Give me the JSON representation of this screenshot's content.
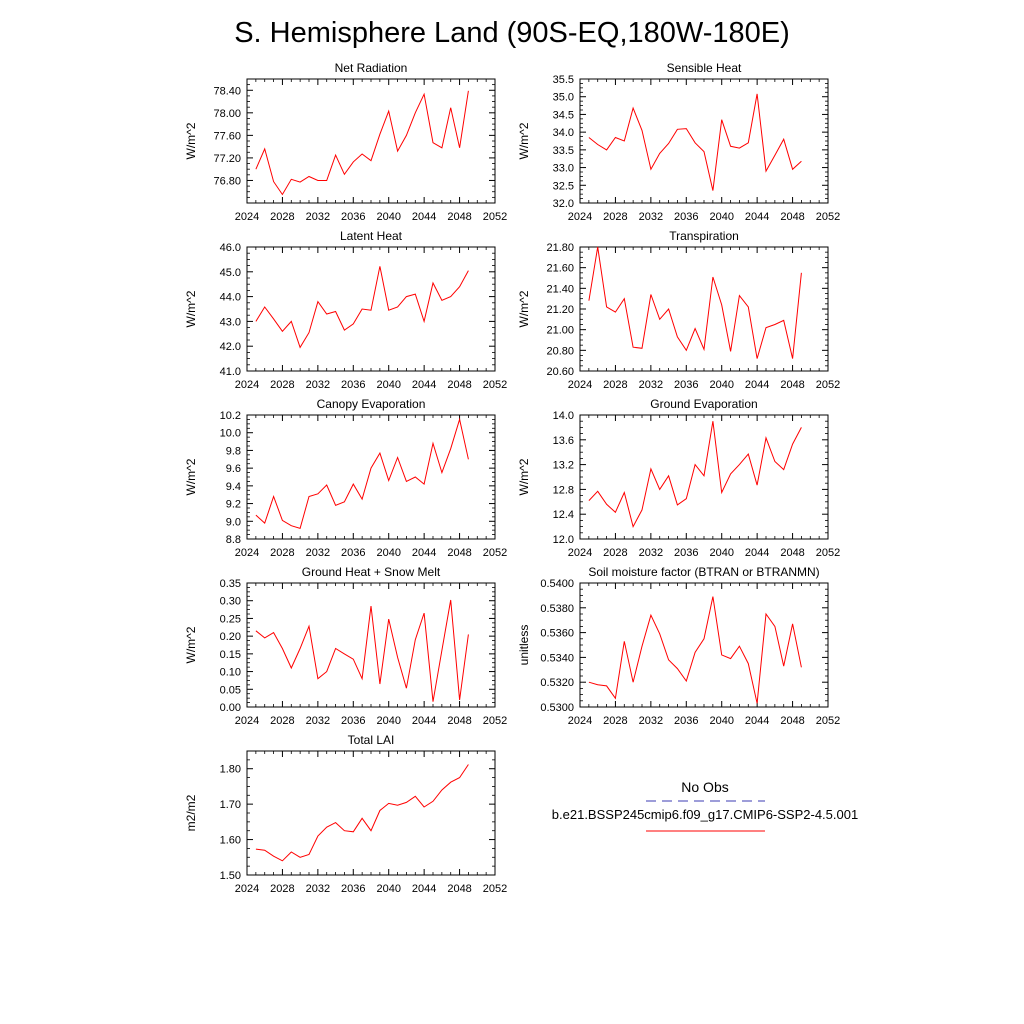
{
  "title": "S. Hemisphere Land (90S-EQ,180W-180E)",
  "legend": {
    "obs_label": "No Obs",
    "obs_color": "#3b3bb3",
    "case_label": "b.e21.BSSP245cmip6.f09_g17.CMIP6-SSP2-4.5.001",
    "case_color": "#ff0000"
  },
  "chart_data": [
    {
      "type": "line",
      "title": "Net Radiation",
      "ylabel": "W/m^2",
      "xlim": [
        2024,
        2052
      ],
      "xticks": [
        "2024",
        "2028",
        "2032",
        "2036",
        "2040",
        "2044",
        "2048",
        "2052"
      ],
      "ylim": [
        76.4,
        78.6
      ],
      "yticks": [
        "76.80",
        "77.20",
        "77.60",
        "78.00",
        "78.40"
      ],
      "x": [
        2025,
        2026,
        2027,
        2028,
        2029,
        2030,
        2031,
        2032,
        2033,
        2034,
        2035,
        2036,
        2037,
        2038,
        2039,
        2040,
        2041,
        2042,
        2043,
        2044,
        2045,
        2046,
        2047,
        2048,
        2049
      ],
      "values": [
        77.0,
        77.36,
        76.78,
        76.55,
        76.82,
        76.77,
        76.87,
        76.8,
        76.8,
        77.25,
        76.91,
        77.13,
        77.27,
        77.15,
        77.62,
        78.03,
        77.32,
        77.6,
        78.0,
        78.33,
        77.47,
        77.38,
        78.09,
        77.38,
        78.39
      ]
    },
    {
      "type": "line",
      "title": "Sensible Heat",
      "ylabel": "W/m^2",
      "xlim": [
        2024,
        2052
      ],
      "xticks": [
        "2024",
        "2028",
        "2032",
        "2036",
        "2040",
        "2044",
        "2048",
        "2052"
      ],
      "ylim": [
        32.0,
        35.5
      ],
      "yticks": [
        "32.0",
        "32.5",
        "33.0",
        "33.5",
        "34.0",
        "34.5",
        "35.0",
        "35.5"
      ],
      "x": [
        2025,
        2026,
        2027,
        2028,
        2029,
        2030,
        2031,
        2032,
        2033,
        2034,
        2035,
        2036,
        2037,
        2038,
        2039,
        2040,
        2041,
        2042,
        2043,
        2044,
        2045,
        2046,
        2047,
        2048,
        2049
      ],
      "values": [
        33.85,
        33.65,
        33.5,
        33.85,
        33.75,
        34.68,
        34.05,
        32.95,
        33.4,
        33.68,
        34.08,
        34.1,
        33.7,
        33.45,
        32.35,
        34.35,
        33.6,
        33.55,
        33.7,
        35.08,
        32.9,
        33.35,
        33.8,
        32.95,
        33.18
      ]
    },
    {
      "type": "line",
      "title": "Latent Heat",
      "ylabel": "W/m^2",
      "xlim": [
        2024,
        2052
      ],
      "xticks": [
        "2024",
        "2028",
        "2032",
        "2036",
        "2040",
        "2044",
        "2048",
        "2052"
      ],
      "ylim": [
        41.0,
        46.0
      ],
      "yticks": [
        "41.0",
        "42.0",
        "43.0",
        "44.0",
        "45.0",
        "46.0"
      ],
      "x": [
        2025,
        2026,
        2027,
        2028,
        2029,
        2030,
        2031,
        2032,
        2033,
        2034,
        2035,
        2036,
        2037,
        2038,
        2039,
        2040,
        2041,
        2042,
        2043,
        2044,
        2045,
        2046,
        2047,
        2048,
        2049
      ],
      "values": [
        43.0,
        43.58,
        43.1,
        42.6,
        43.0,
        41.95,
        42.55,
        43.8,
        43.3,
        43.4,
        42.65,
        42.9,
        43.5,
        43.45,
        45.22,
        43.45,
        43.58,
        44.0,
        44.1,
        43.0,
        44.55,
        43.85,
        44.0,
        44.4,
        45.05
      ]
    },
    {
      "type": "line",
      "title": "Transpiration",
      "ylabel": "W/m^2",
      "xlim": [
        2024,
        2052
      ],
      "xticks": [
        "2024",
        "2028",
        "2032",
        "2036",
        "2040",
        "2044",
        "2048",
        "2052"
      ],
      "ylim": [
        20.6,
        21.8
      ],
      "yticks": [
        "20.60",
        "20.80",
        "21.00",
        "21.20",
        "21.40",
        "21.60",
        "21.80"
      ],
      "x": [
        2025,
        2026,
        2027,
        2028,
        2029,
        2030,
        2031,
        2032,
        2033,
        2034,
        2035,
        2036,
        2037,
        2038,
        2039,
        2040,
        2041,
        2042,
        2043,
        2044,
        2045,
        2046,
        2047,
        2048,
        2049
      ],
      "values": [
        21.28,
        21.8,
        21.22,
        21.17,
        21.3,
        20.83,
        20.82,
        21.34,
        21.1,
        21.2,
        20.93,
        20.8,
        21.01,
        20.81,
        21.51,
        21.24,
        20.79,
        21.33,
        21.22,
        20.72,
        21.02,
        21.05,
        21.09,
        20.72,
        21.55
      ]
    },
    {
      "type": "line",
      "title": "Canopy Evaporation",
      "ylabel": "W/m^2",
      "xlim": [
        2024,
        2052
      ],
      "xticks": [
        "2024",
        "2028",
        "2032",
        "2036",
        "2040",
        "2044",
        "2048",
        "2052"
      ],
      "ylim": [
        8.8,
        10.2
      ],
      "yticks": [
        "8.8",
        "9.0",
        "9.2",
        "9.4",
        "9.6",
        "9.8",
        "10.0",
        "10.2"
      ],
      "x": [
        2025,
        2026,
        2027,
        2028,
        2029,
        2030,
        2031,
        2032,
        2033,
        2034,
        2035,
        2036,
        2037,
        2038,
        2039,
        2040,
        2041,
        2042,
        2043,
        2044,
        2045,
        2046,
        2047,
        2048,
        2049
      ],
      "values": [
        9.07,
        8.98,
        9.28,
        9.01,
        8.95,
        8.92,
        9.28,
        9.31,
        9.41,
        9.18,
        9.22,
        9.42,
        9.25,
        9.6,
        9.77,
        9.46,
        9.72,
        9.45,
        9.5,
        9.42,
        9.88,
        9.55,
        9.82,
        10.15,
        9.7
      ]
    },
    {
      "type": "line",
      "title": "Ground Evaporation",
      "ylabel": "W/m^2",
      "xlim": [
        2024,
        2052
      ],
      "xticks": [
        "2024",
        "2028",
        "2032",
        "2036",
        "2040",
        "2044",
        "2048",
        "2052"
      ],
      "ylim": [
        12.0,
        14.0
      ],
      "yticks": [
        "12.0",
        "12.4",
        "12.8",
        "13.2",
        "13.6",
        "14.0"
      ],
      "x": [
        2025,
        2026,
        2027,
        2028,
        2029,
        2030,
        2031,
        2032,
        2033,
        2034,
        2035,
        2036,
        2037,
        2038,
        2039,
        2040,
        2041,
        2042,
        2043,
        2044,
        2045,
        2046,
        2047,
        2048,
        2049
      ],
      "values": [
        12.62,
        12.77,
        12.56,
        12.43,
        12.75,
        12.2,
        12.47,
        13.13,
        12.8,
        13.02,
        12.55,
        12.65,
        13.2,
        13.02,
        13.9,
        12.75,
        13.05,
        13.2,
        13.37,
        12.87,
        13.63,
        13.25,
        13.12,
        13.53,
        13.8
      ]
    },
    {
      "type": "line",
      "title": "Ground Heat + Snow Melt",
      "ylabel": "W/m^2",
      "xlim": [
        2024,
        2052
      ],
      "xticks": [
        "2024",
        "2028",
        "2032",
        "2036",
        "2040",
        "2044",
        "2048",
        "2052"
      ],
      "ylim": [
        0.0,
        0.35
      ],
      "yticks": [
        "0.00",
        "0.05",
        "0.10",
        "0.15",
        "0.20",
        "0.25",
        "0.30",
        "0.35"
      ],
      "x": [
        2025,
        2026,
        2027,
        2028,
        2029,
        2030,
        2031,
        2032,
        2033,
        2034,
        2035,
        2036,
        2037,
        2038,
        2039,
        2040,
        2041,
        2042,
        2043,
        2044,
        2045,
        2046,
        2047,
        2048,
        2049
      ],
      "values": [
        0.215,
        0.195,
        0.21,
        0.165,
        0.11,
        0.165,
        0.228,
        0.08,
        0.1,
        0.165,
        0.15,
        0.135,
        0.08,
        0.285,
        0.065,
        0.248,
        0.14,
        0.053,
        0.19,
        0.265,
        0.015,
        0.16,
        0.302,
        0.02,
        0.205
      ]
    },
    {
      "type": "line",
      "title": "Soil moisture factor (BTRAN or BTRANMN)",
      "ylabel": "unitless",
      "xlim": [
        2024,
        2052
      ],
      "xticks": [
        "2024",
        "2028",
        "2032",
        "2036",
        "2040",
        "2044",
        "2048",
        "2052"
      ],
      "ylim": [
        0.53,
        0.54
      ],
      "yticks": [
        "0.5300",
        "0.5320",
        "0.5340",
        "0.5360",
        "0.5380",
        "0.5400"
      ],
      "x": [
        2025,
        2026,
        2027,
        2028,
        2029,
        2030,
        2031,
        2032,
        2033,
        2034,
        2035,
        2036,
        2037,
        2038,
        2039,
        2040,
        2041,
        2042,
        2043,
        2044,
        2045,
        2046,
        2047,
        2048,
        2049
      ],
      "values": [
        0.532,
        0.5318,
        0.5317,
        0.5307,
        0.5353,
        0.532,
        0.5349,
        0.5374,
        0.5359,
        0.5338,
        0.5331,
        0.5321,
        0.5344,
        0.5355,
        0.5389,
        0.5342,
        0.5339,
        0.5349,
        0.5335,
        0.5303,
        0.5375,
        0.5365,
        0.5333,
        0.5367,
        0.5332
      ]
    },
    {
      "type": "line",
      "title": "Total LAI",
      "ylabel": "m2/m2",
      "xlim": [
        2024,
        2052
      ],
      "xticks": [
        "2024",
        "2028",
        "2032",
        "2036",
        "2040",
        "2044",
        "2048",
        "2052"
      ],
      "ylim": [
        1.5,
        1.85
      ],
      "yticks": [
        "1.50",
        "1.60",
        "1.70",
        "1.80"
      ],
      "x": [
        2025,
        2026,
        2027,
        2028,
        2029,
        2030,
        2031,
        2032,
        2033,
        2034,
        2035,
        2036,
        2037,
        2038,
        2039,
        2040,
        2041,
        2042,
        2043,
        2044,
        2045,
        2046,
        2047,
        2048,
        2049
      ],
      "values": [
        1.573,
        1.57,
        1.553,
        1.54,
        1.565,
        1.55,
        1.558,
        1.61,
        1.635,
        1.648,
        1.625,
        1.622,
        1.66,
        1.625,
        1.682,
        1.702,
        1.697,
        1.705,
        1.722,
        1.692,
        1.708,
        1.74,
        1.762,
        1.775,
        1.812
      ]
    }
  ]
}
